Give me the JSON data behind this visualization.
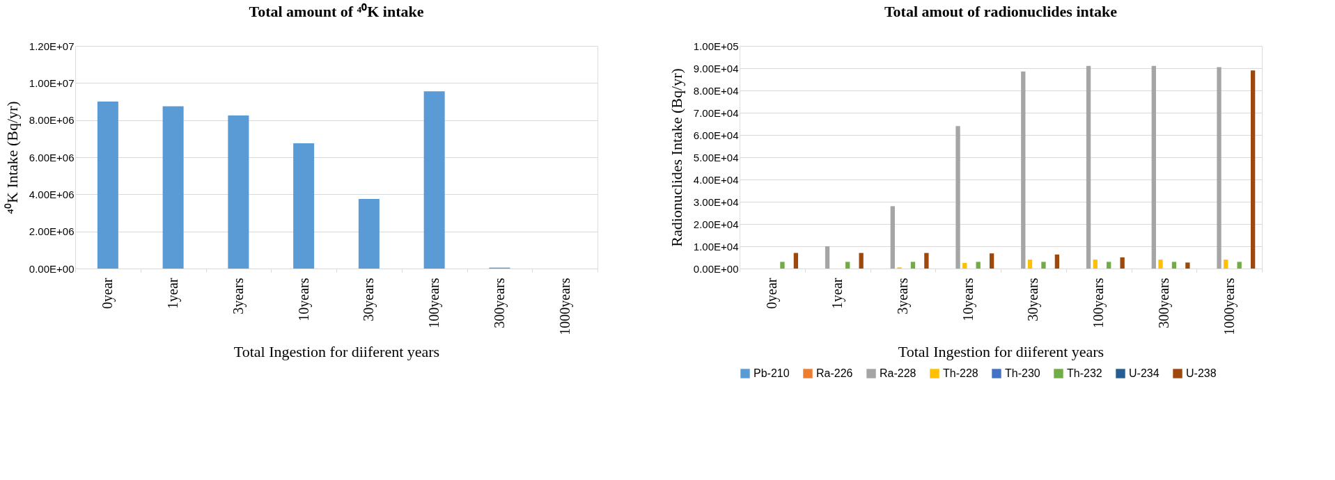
{
  "chart_data": [
    {
      "type": "bar",
      "title": "Total amount of ⁴⁰K intake",
      "xlabel": "Total Ingestion for diiferent years",
      "ylabel": "⁴⁰K Intake (Bq/yr)",
      "categories": [
        "0year",
        "1year",
        "3years",
        "10years",
        "30years",
        "100years",
        "300years",
        "1000years"
      ],
      "values": [
        9000000,
        8750000,
        8250000,
        6750000,
        3750000,
        9550000,
        50000,
        0
      ],
      "color": "#5b9bd5",
      "ylim": [
        0,
        12000000
      ],
      "yticks": [
        {
          "value": 0,
          "label": "0.00E+00"
        },
        {
          "value": 2000000,
          "label": "2.00E+06"
        },
        {
          "value": 4000000,
          "label": "4.00E+06"
        },
        {
          "value": 6000000,
          "label": "6.00E+06"
        },
        {
          "value": 8000000,
          "label": "8.00E+06"
        },
        {
          "value": 10000000,
          "label": "1.00E+07"
        },
        {
          "value": 12000000,
          "label": "1.20E+07"
        }
      ],
      "grid": "y"
    },
    {
      "type": "bar",
      "title": "Total amout of radionuclides intake",
      "xlabel": "Total Ingestion for diiferent years",
      "ylabel": "Radionuclides Intake (Bq/yr)",
      "categories": [
        "0year",
        "1year",
        "3years",
        "10years",
        "30years",
        "100years",
        "300years",
        "1000years"
      ],
      "series": [
        {
          "name": "Pb-210",
          "color": "#5b9bd5",
          "values": [
            0,
            0,
            0,
            0,
            0,
            0,
            0,
            0
          ]
        },
        {
          "name": "Ra-226",
          "color": "#ed7d31",
          "values": [
            0,
            0,
            0,
            0,
            0,
            0,
            0,
            0
          ]
        },
        {
          "name": "Ra-228",
          "color": "#a5a5a5",
          "values": [
            0,
            10000,
            28000,
            64000,
            88500,
            91000,
            91000,
            90500
          ]
        },
        {
          "name": "Th-228",
          "color": "#ffc000",
          "values": [
            0,
            0,
            500,
            2500,
            4000,
            4000,
            4000,
            4000
          ]
        },
        {
          "name": "Th-230",
          "color": "#4472c4",
          "values": [
            0,
            0,
            0,
            0,
            0,
            0,
            0,
            0
          ]
        },
        {
          "name": "Th-232",
          "color": "#70ad47",
          "values": [
            3000,
            3000,
            3000,
            3000,
            3000,
            3000,
            3000,
            3000
          ]
        },
        {
          "name": "U-234",
          "color": "#255e91",
          "values": [
            0,
            0,
            0,
            0,
            0,
            0,
            0,
            0
          ]
        },
        {
          "name": "U-238",
          "color": "#9e480e",
          "values": [
            7000,
            7000,
            7000,
            6800,
            6300,
            5000,
            2700,
            89000
          ]
        }
      ],
      "ylim": [
        0,
        100000
      ],
      "yticks": [
        {
          "value": 0,
          "label": "0.00E+00"
        },
        {
          "value": 10000,
          "label": "1.00E+04"
        },
        {
          "value": 20000,
          "label": "2.00E+04"
        },
        {
          "value": 30000,
          "label": "3.00E+04"
        },
        {
          "value": 40000,
          "label": "4.00E+04"
        },
        {
          "value": 50000,
          "label": "5.00E+04"
        },
        {
          "value": 60000,
          "label": "6.00E+04"
        },
        {
          "value": 70000,
          "label": "7.00E+04"
        },
        {
          "value": 80000,
          "label": "8.00E+04"
        },
        {
          "value": 90000,
          "label": "9.00E+04"
        },
        {
          "value": 100000,
          "label": "1.00E+05"
        }
      ],
      "grid": "y",
      "legend": "bottom"
    }
  ]
}
